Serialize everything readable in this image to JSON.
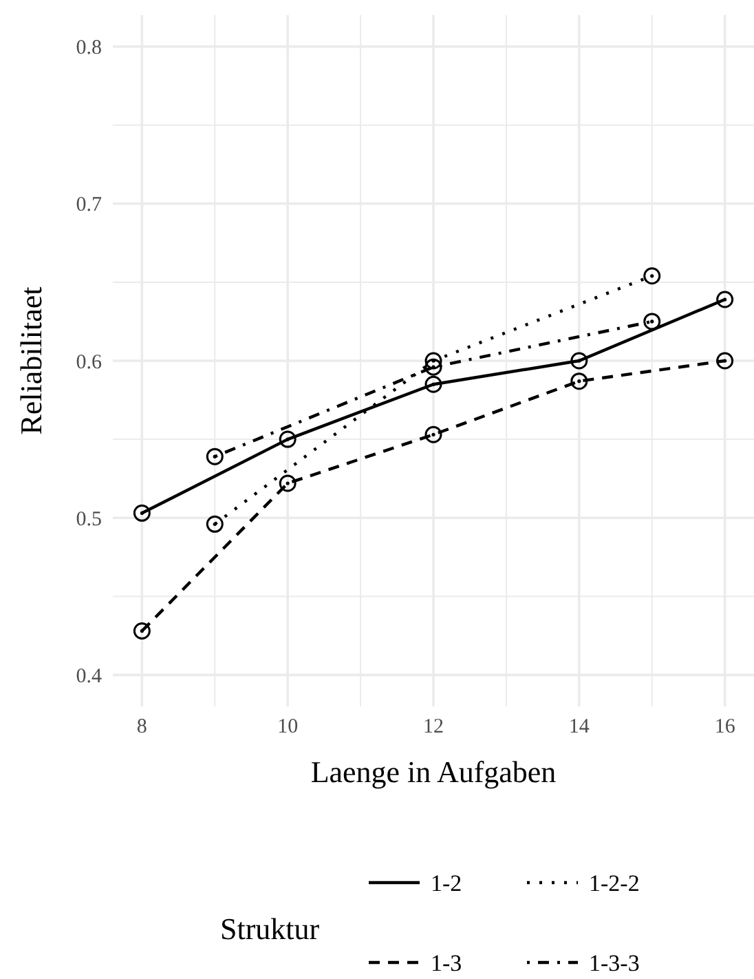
{
  "chart_data": {
    "type": "line",
    "xlabel": "Laenge in Aufgaben",
    "ylabel": "Reliabilitaet",
    "legend_title": "Struktur",
    "legend": "bottom",
    "grid": true,
    "marker": "circle",
    "xlim": [
      7.6,
      16.4
    ],
    "xticks": [
      8,
      {
        "value": 9,
        "label": null
      },
      10,
      {
        "value": 11,
        "label": null
      },
      12,
      {
        "value": 13,
        "label": null
      },
      14,
      {
        "value": 15,
        "label": null
      },
      16
    ],
    "ylim": [
      0.38,
      0.82
    ],
    "yticks": [
      {
        "value": 0.4,
        "label": "0.4"
      },
      {
        "value": 0.45,
        "label": null
      },
      {
        "value": 0.5,
        "label": "0.5"
      },
      {
        "value": 0.55,
        "label": null
      },
      {
        "value": 0.6,
        "label": "0.6"
      },
      {
        "value": 0.65,
        "label": null
      },
      {
        "value": 0.7,
        "label": "0.7"
      },
      {
        "value": 0.75,
        "label": null
      },
      {
        "value": 0.8,
        "label": "0.8"
      }
    ],
    "series": [
      {
        "name": "1-2",
        "color": "#000000",
        "line_style": "solid",
        "x": [
          8,
          10,
          12,
          14,
          16
        ],
        "values": [
          0.503,
          0.55,
          0.585,
          0.6,
          0.639
        ]
      },
      {
        "name": "1-2-2",
        "color": "#000000",
        "line_style": "dotted",
        "x": [
          9,
          12,
          15
        ],
        "values": [
          0.496,
          0.6,
          0.654
        ]
      },
      {
        "name": "1-3",
        "color": "#000000",
        "line_style": "dashed",
        "x": [
          8,
          10,
          12,
          14,
          16
        ],
        "values": [
          0.428,
          0.522,
          0.553,
          0.587,
          0.6
        ]
      },
      {
        "name": "1-3-3",
        "color": "#000000",
        "line_style": "dashdot",
        "x": [
          9,
          12,
          15
        ],
        "values": [
          0.539,
          0.596,
          0.625
        ]
      }
    ]
  }
}
